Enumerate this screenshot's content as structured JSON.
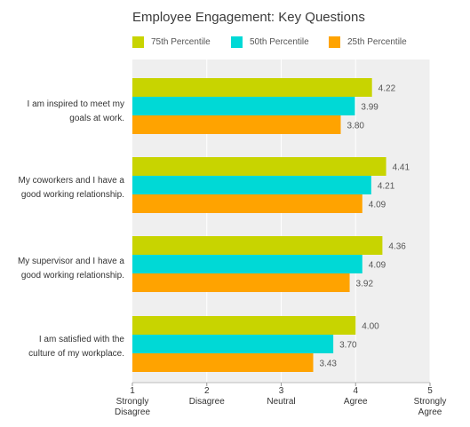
{
  "chart_data": {
    "type": "bar",
    "orientation": "horizontal",
    "title": "Employee Engagement: Key Questions",
    "categories": [
      [
        "I am inspired to meet my",
        "goals at work."
      ],
      [
        "My coworkers and I have a",
        "good working relationship."
      ],
      [
        "My supervisor and I have a",
        "good working relationship."
      ],
      [
        "I am satisfied with the",
        "culture of my workplace."
      ]
    ],
    "series": [
      {
        "name": "75th Percentile",
        "color": "#c8d400",
        "values": [
          4.22,
          4.41,
          4.36,
          4.0
        ],
        "labels": [
          "4.22",
          "4.41",
          "4.36",
          "4.00"
        ]
      },
      {
        "name": "50th Percentile",
        "color": "#00d9d6",
        "values": [
          3.99,
          4.21,
          4.09,
          3.7
        ],
        "labels": [
          "3.99",
          "4.21",
          "4.09",
          "3.70"
        ]
      },
      {
        "name": "25th Percentile",
        "color": "#ffa300",
        "values": [
          3.8,
          4.09,
          3.92,
          3.43
        ],
        "labels": [
          "3.80",
          "4.09",
          "3.92",
          "3.43"
        ]
      }
    ],
    "xlim": [
      1,
      5
    ],
    "xticks": [
      1,
      2,
      3,
      4,
      5
    ],
    "xtick_labels": [
      [
        "1",
        "Strongly",
        "Disagree"
      ],
      [
        "2",
        "Disagree"
      ],
      [
        "3",
        "Neutral"
      ],
      [
        "4",
        "Agree"
      ],
      [
        "5",
        "Strongly",
        "Agree"
      ]
    ],
    "grid": true,
    "legend_position": "top",
    "plot_background": "#efefef",
    "grid_color": "#ffffff"
  }
}
